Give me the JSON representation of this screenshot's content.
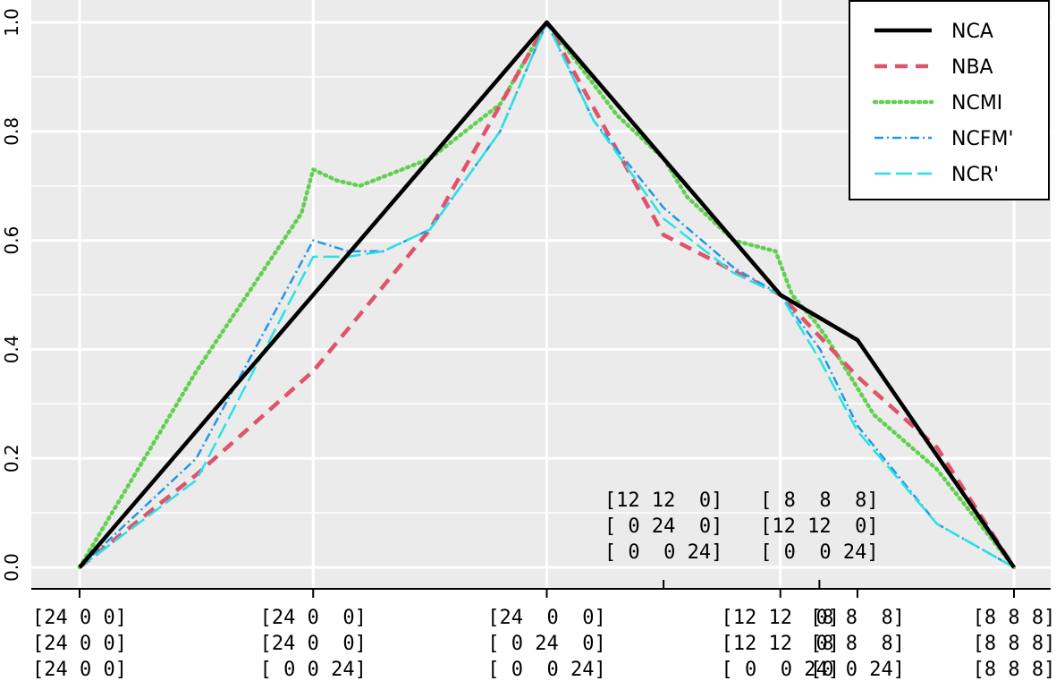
{
  "chart_data": {
    "type": "line",
    "ylim": [
      0,
      1
    ],
    "xlim": [
      0,
      4
    ],
    "y_ticks": [
      "0.0",
      "0.2",
      "0.4",
      "0.6",
      "0.8",
      "1.0"
    ],
    "grid": true,
    "legend_position": "top-right",
    "x_ticks": [
      {
        "x": 0,
        "lines": [
          "[24 0 0]",
          "[24 0 0]",
          "[24 0 0]"
        ]
      },
      {
        "x": 1,
        "lines": [
          "[24 0  0]",
          "[24 0  0]",
          "[ 0 0 24]"
        ]
      },
      {
        "x": 2,
        "lines": [
          "[24  0  0]",
          "[ 0 24  0]",
          "[ 0  0 24]"
        ]
      },
      {
        "x": 3,
        "lines": [
          "[12 12  0]",
          "[12 12  0]",
          "[ 0  0 24]"
        ]
      },
      {
        "x": 3.33,
        "lines": [
          "[8 8  8]",
          "[8 8  8]",
          "[0 0 24]"
        ]
      },
      {
        "x": 4,
        "lines": [
          "[8 8 8]",
          "[8 8 8]",
          "[8 8 8]"
        ]
      }
    ],
    "annotations": [
      {
        "x": 2.5,
        "lines": [
          "[12 12  0]",
          "[ 0 24  0]",
          "[ 0  0 24]"
        ]
      },
      {
        "x": 3.167,
        "lines": [
          "[ 8  8  8]",
          "[12 12  0]",
          "[ 0  0 24]"
        ]
      }
    ],
    "series": [
      {
        "name": "NCA",
        "color": "#000000",
        "x": [
          0,
          1,
          2,
          3,
          3.33,
          4
        ],
        "y": [
          0,
          0.5,
          1.0,
          0.5,
          0.417,
          0
        ]
      },
      {
        "name": "NBA",
        "color": "#DF536B",
        "x": [
          0,
          0.5,
          1.0,
          1.5,
          2.0,
          2.5,
          3.0,
          3.33,
          3.67,
          4.0
        ],
        "y": [
          0,
          0.17,
          0.36,
          0.62,
          1.0,
          0.61,
          0.5,
          0.35,
          0.22,
          0
        ]
      },
      {
        "name": "NCMI",
        "color": "#61D04F",
        "x": [
          0,
          0.5,
          0.95,
          1.0,
          1.1,
          1.2,
          1.5,
          1.8,
          2.0,
          2.3,
          2.5,
          2.6,
          2.8,
          2.98,
          3.05,
          3.15,
          3.2,
          3.4,
          3.67,
          4.0
        ],
        "y": [
          0,
          0.36,
          0.65,
          0.73,
          0.71,
          0.7,
          0.75,
          0.85,
          1.0,
          0.83,
          0.75,
          0.68,
          0.6,
          0.58,
          0.5,
          0.45,
          0.42,
          0.28,
          0.18,
          0
        ]
      },
      {
        "name": "NCFM'",
        "color": "#2297E6",
        "x": [
          0,
          0.5,
          1.0,
          1.15,
          1.3,
          1.5,
          1.8,
          2.0,
          2.2,
          2.5,
          2.8,
          3.0,
          3.17,
          3.33,
          3.67,
          4.0
        ],
        "y": [
          0,
          0.2,
          0.6,
          0.58,
          0.58,
          0.62,
          0.8,
          1.0,
          0.82,
          0.66,
          0.55,
          0.5,
          0.4,
          0.26,
          0.08,
          0
        ]
      },
      {
        "name": "NCR'",
        "color": "#28E2E5",
        "x": [
          0,
          0.5,
          1.0,
          1.15,
          1.3,
          1.5,
          1.8,
          2.0,
          2.2,
          2.5,
          2.8,
          3.0,
          3.17,
          3.33,
          3.67,
          4.0
        ],
        "y": [
          0,
          0.16,
          0.57,
          0.57,
          0.58,
          0.62,
          0.8,
          1.0,
          0.82,
          0.64,
          0.54,
          0.5,
          0.38,
          0.25,
          0.08,
          0
        ]
      }
    ]
  }
}
